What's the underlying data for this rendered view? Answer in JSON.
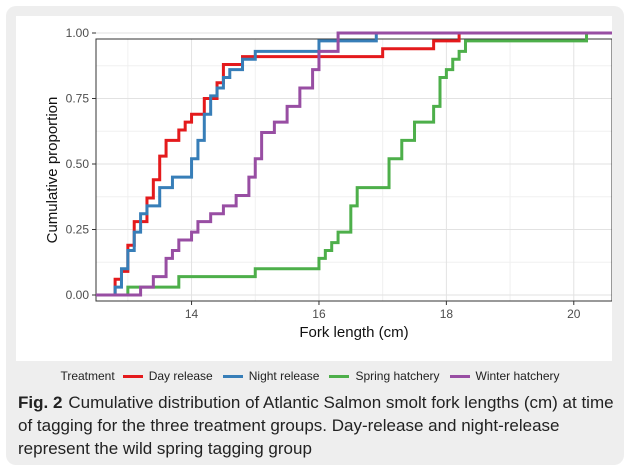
{
  "chart_data": {
    "type": "line",
    "xlabel": "Fork length (cm)",
    "ylabel": "Cumulative proportion",
    "xlim": [
      12.5,
      20.6
    ],
    "ylim": [
      0,
      1
    ],
    "x_ticks": [
      14,
      16,
      18,
      20
    ],
    "x_tick_labels": [
      "14",
      "16",
      "18",
      "20"
    ],
    "y_ticks": [
      0,
      0.25,
      0.5,
      0.75,
      1
    ],
    "y_tick_labels": [
      "0.00",
      "0.25",
      "0.50",
      "0.75",
      "1.00"
    ],
    "grid": true,
    "legend_position": "bottom",
    "legend_title": "Treatment",
    "series": [
      {
        "name": "Day release",
        "color": "#e41a1c",
        "x": [
          12.5,
          12.8,
          12.9,
          13.0,
          13.1,
          13.3,
          13.4,
          13.5,
          13.6,
          13.8,
          13.9,
          14.0,
          14.2,
          14.4,
          14.5,
          14.6,
          14.8,
          15.0,
          16.0,
          17.0,
          17.8,
          18.2,
          20.6
        ],
        "y": [
          0.0,
          0.06,
          0.09,
          0.19,
          0.28,
          0.37,
          0.44,
          0.53,
          0.59,
          0.63,
          0.66,
          0.69,
          0.75,
          0.81,
          0.88,
          0.88,
          0.91,
          0.91,
          0.91,
          0.94,
          0.97,
          1.0,
          1.0
        ]
      },
      {
        "name": "Night release",
        "color": "#377eb8",
        "x": [
          12.5,
          12.8,
          12.9,
          13.0,
          13.1,
          13.2,
          13.3,
          13.5,
          13.6,
          13.7,
          13.8,
          14.0,
          14.1,
          14.2,
          14.3,
          14.4,
          14.5,
          14.6,
          14.8,
          15.0,
          16.0,
          16.9,
          20.6
        ],
        "y": [
          0.0,
          0.03,
          0.1,
          0.17,
          0.24,
          0.31,
          0.34,
          0.41,
          0.41,
          0.45,
          0.45,
          0.52,
          0.59,
          0.69,
          0.76,
          0.79,
          0.83,
          0.86,
          0.9,
          0.93,
          0.97,
          1.0,
          1.0
        ]
      },
      {
        "name": "Spring hatchery",
        "color": "#4daf4a",
        "x": [
          12.5,
          13.0,
          13.8,
          15.0,
          16.0,
          16.1,
          16.2,
          16.3,
          16.5,
          16.6,
          16.8,
          17.1,
          17.3,
          17.5,
          17.8,
          17.9,
          18.0,
          18.1,
          18.2,
          18.3,
          18.5,
          20.2,
          20.6
        ],
        "y": [
          0.0,
          0.03,
          0.07,
          0.1,
          0.14,
          0.17,
          0.2,
          0.24,
          0.34,
          0.41,
          0.41,
          0.52,
          0.59,
          0.66,
          0.72,
          0.83,
          0.86,
          0.9,
          0.93,
          0.97,
          0.97,
          1.0,
          1.0
        ]
      },
      {
        "name": "Winter hatchery",
        "color": "#984ea3",
        "x": [
          12.5,
          13.2,
          13.4,
          13.6,
          13.7,
          13.8,
          14.0,
          14.1,
          14.3,
          14.5,
          14.7,
          14.9,
          15.0,
          15.1,
          15.3,
          15.5,
          15.7,
          15.9,
          16.0,
          16.3,
          20.6
        ],
        "y": [
          0.0,
          0.03,
          0.07,
          0.14,
          0.17,
          0.21,
          0.24,
          0.28,
          0.31,
          0.34,
          0.38,
          0.45,
          0.52,
          0.62,
          0.66,
          0.72,
          0.79,
          0.86,
          0.93,
          1.0,
          1.0
        ]
      }
    ]
  },
  "caption": {
    "label": "Fig. 2",
    "text": "Cumulative distribution of Atlantic Salmon smolt fork lengths (cm) at time of tagging for the three treatment groups. Day-release and night-release represent the wild spring tagging group"
  }
}
